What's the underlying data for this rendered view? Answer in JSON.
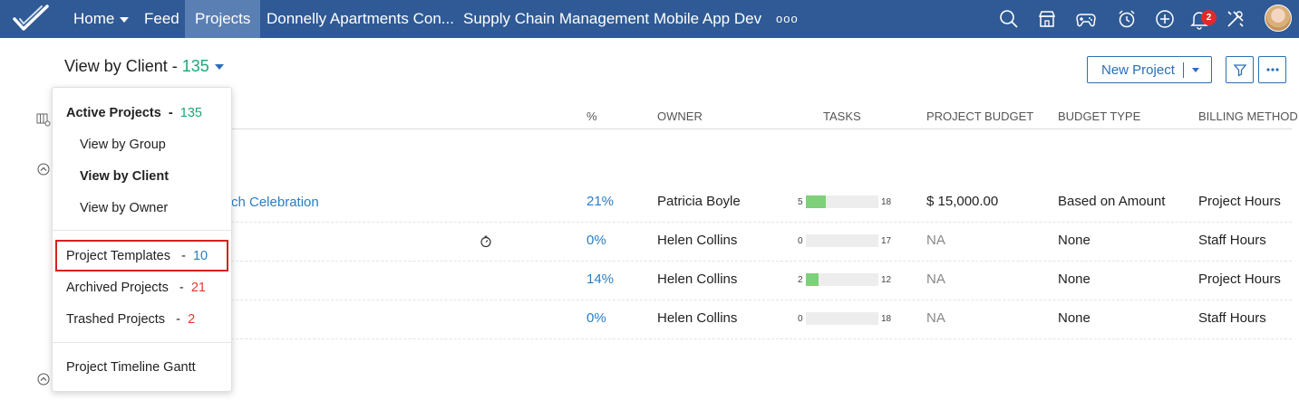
{
  "nav": {
    "home": "Home",
    "feed": "Feed",
    "projects": "Projects",
    "project_1": "Donnelly Apartments Con...",
    "project_2": "Supply Chain Management",
    "project_3": "Mobile App Dev",
    "more": "ooo",
    "notification_count": "2"
  },
  "header": {
    "view_label": "View by Client -",
    "view_count": "135",
    "new_project": "New Project"
  },
  "table": {
    "columns": [
      "%",
      "OWNER",
      "TASKS",
      "PROJECT BUDGET",
      "BUDGET TYPE",
      "BILLING METHOD"
    ],
    "partial_project_name": "ch Celebration",
    "rows": [
      {
        "percent": "21%",
        "owner": "Patricia Boyle",
        "done": "5",
        "total": "18",
        "progress": 0.28,
        "budget": "$ 15,000.00",
        "budget_type": "Based on Amount",
        "billing": "Project Hours"
      },
      {
        "percent": "0%",
        "owner": "Helen Collins",
        "done": "0",
        "total": "17",
        "progress": 0,
        "budget": "NA",
        "budget_type": "None",
        "billing": "Staff Hours"
      },
      {
        "percent": "14%",
        "owner": "Helen Collins",
        "done": "2",
        "total": "12",
        "progress": 0.17,
        "budget": "NA",
        "budget_type": "None",
        "billing": "Project Hours"
      },
      {
        "percent": "0%",
        "owner": "Helen Collins",
        "done": "0",
        "total": "18",
        "progress": 0,
        "budget": "NA",
        "budget_type": "None",
        "billing": "Staff Hours"
      }
    ]
  },
  "dropdown": {
    "active_label": "Active Projects",
    "active_count": "135",
    "by_group": "View by Group",
    "by_client": "View by Client",
    "by_owner": "View by Owner",
    "templates_label": "Project Templates",
    "templates_count": "10",
    "archived_label": "Archived Projects",
    "archived_count": "21",
    "trashed_label": "Trashed Projects",
    "trashed_count": "2",
    "gantt": "Project Timeline Gantt",
    "dash": "-"
  },
  "colors": {
    "topbar": "#2f5a96",
    "accent": "#2a6fb3",
    "teal": "#1aa67a",
    "red": "#e0392b",
    "progress": "#7ed07a"
  }
}
